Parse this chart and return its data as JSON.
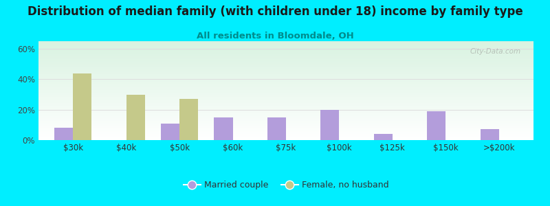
{
  "title": "Distribution of median family (with children under 18) income by family type",
  "subtitle": "All residents in Bloomdale, OH",
  "categories": [
    "$30k",
    "$40k",
    "$50k",
    "$60k",
    "$75k",
    "$100k",
    "$125k",
    "$150k",
    ">$200k"
  ],
  "married_couple": [
    8,
    0,
    11,
    15,
    15,
    20,
    4,
    19,
    7
  ],
  "female_no_husband": [
    44,
    30,
    27,
    0,
    0,
    0,
    0,
    0,
    0
  ],
  "married_color": "#b39ddb",
  "female_color": "#c5c98a",
  "bg_outer": "#00eeff",
  "title_fontsize": 12,
  "subtitle_fontsize": 9.5,
  "ylabel_ticks": [
    "0%",
    "20%",
    "40%",
    "60%"
  ],
  "yticks": [
    0,
    20,
    40,
    60
  ],
  "ylim": [
    0,
    65
  ],
  "bar_width": 0.35,
  "legend_labels": [
    "Married couple",
    "Female, no husband"
  ],
  "watermark": "City-Data.com"
}
